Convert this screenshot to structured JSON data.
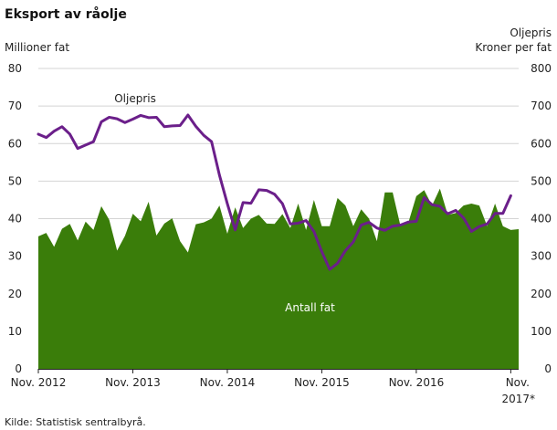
{
  "chart_data": {
    "type": "area",
    "title": "Eksport av råolje",
    "y_left_label": "Millioner fat",
    "y_right_label_line1": "Oljepris",
    "y_right_label_line2": "Kroner per fat",
    "y_left_lim": [
      0,
      80
    ],
    "y_left_ticks": [
      "0",
      "10",
      "20",
      "30",
      "40",
      "50",
      "60",
      "70",
      "80"
    ],
    "y_right_lim": [
      0,
      800
    ],
    "y_right_ticks": [
      "0",
      "100",
      "200",
      "300",
      "400",
      "500",
      "600",
      "700",
      "800"
    ],
    "x_start": "2012-11",
    "x_ticks": [
      {
        "label": "Nov. 2012",
        "index": 0
      },
      {
        "label": "Nov. 2013",
        "index": 12
      },
      {
        "label": "Nov. 2014",
        "index": 24
      },
      {
        "label": "Nov. 2015",
        "index": 36
      },
      {
        "label": "Nov. 2016",
        "index": 48
      },
      {
        "label": "Nov.",
        "index": 60
      }
    ],
    "x_tick_extra": "2017*",
    "grid": true,
    "series": [
      {
        "name": "Antall fat",
        "kind": "area",
        "axis": "left",
        "color": "#3a7d0a",
        "values": [
          35.3,
          36.2,
          32.5,
          37.3,
          38.6,
          34.2,
          39.2,
          37.0,
          43.3,
          39.7,
          31.5,
          35.4,
          41.3,
          39.3,
          44.5,
          35.5,
          38.7,
          40.1,
          34.0,
          31.0,
          38.5,
          39.0,
          40.0,
          43.5,
          36.0,
          43.0,
          37.5,
          40.0,
          41.0,
          38.7,
          38.6,
          41.2,
          37.5,
          44.0,
          37.0,
          45.0,
          38.0,
          38.0,
          45.5,
          43.5,
          38.0,
          42.5,
          40.0,
          34.0,
          47.0,
          47.0,
          38.0,
          39.0,
          46.0,
          47.6,
          43.5,
          48.0,
          41.0,
          41.5,
          43.5,
          44.0,
          43.5,
          38.0,
          44.0,
          38.0,
          37.0,
          37.2
        ]
      },
      {
        "name": "Oljepris",
        "kind": "line",
        "axis": "right",
        "color": "#6b1f8a",
        "values": [
          625,
          616,
          633,
          645,
          625,
          587,
          596,
          605,
          658,
          670,
          666,
          656,
          665,
          675,
          669,
          670,
          645,
          647,
          648,
          676,
          646,
          622,
          605,
          516,
          440,
          370,
          443,
          441,
          477,
          475,
          465,
          440,
          386,
          388,
          395,
          366,
          312,
          265,
          281,
          315,
          338,
          383,
          390,
          375,
          369,
          380,
          383,
          391,
          393,
          456,
          437,
          433,
          413,
          422,
          402,
          366,
          379,
          386,
          414,
          414,
          461
        ]
      }
    ],
    "annotations": [
      {
        "text": "Oljepris",
        "x_index": 12.3,
        "y_right": 710,
        "anchor": "middle",
        "style": "dark"
      },
      {
        "text": "Antall fat",
        "x_index": 34.5,
        "y_left": 15.3,
        "anchor": "middle",
        "style": "light"
      }
    ],
    "source": "Kilde: Statistisk sentralbyrå."
  }
}
